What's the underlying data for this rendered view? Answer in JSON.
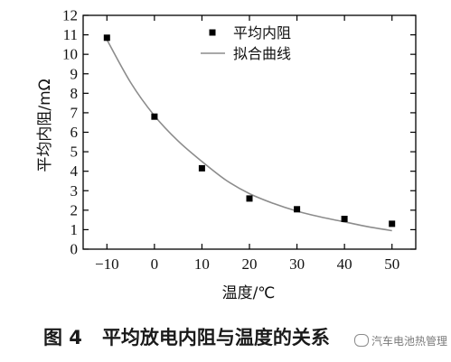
{
  "chart_data": {
    "type": "scatter",
    "xlabel": "温度/℃",
    "ylabel": "平均内阻/mΩ",
    "xlim": [
      -15,
      55
    ],
    "ylim": [
      0,
      12
    ],
    "x_ticks": [
      -10,
      0,
      10,
      20,
      30,
      40,
      50
    ],
    "y_ticks": [
      0,
      1,
      2,
      3,
      4,
      5,
      6,
      7,
      8,
      9,
      10,
      11,
      12
    ],
    "x_tick_labels": [
      "−10",
      "0",
      "10",
      "20",
      "30",
      "40",
      "50"
    ],
    "grid": false,
    "legend_position": "top-right",
    "series": [
      {
        "name": "平均内阻",
        "kind": "scatter",
        "color": "#000000",
        "x": [
          -10,
          0,
          10,
          20,
          30,
          40,
          50
        ],
        "y": [
          10.85,
          6.8,
          4.15,
          2.6,
          2.05,
          1.55,
          1.3
        ]
      },
      {
        "name": "拟合曲线",
        "kind": "line",
        "color": "#8c8c8c",
        "x": [
          -10,
          -5,
          0,
          5,
          10,
          15,
          20,
          25,
          30,
          35,
          40,
          45,
          50
        ],
        "y": [
          10.75,
          8.55,
          6.85,
          5.55,
          4.5,
          3.55,
          2.85,
          2.35,
          1.95,
          1.65,
          1.4,
          1.15,
          0.95
        ]
      }
    ]
  },
  "caption": {
    "figure_number": "图 4",
    "title": "平均放电内阻与温度的关系"
  },
  "watermark": {
    "text": "汽车电池热管理"
  }
}
